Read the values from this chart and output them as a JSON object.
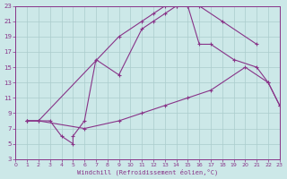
{
  "xlabel": "Windchill (Refroidissement éolien,°C)",
  "bg_color": "#cce8e8",
  "grid_color": "#aacccc",
  "line_color": "#883388",
  "xlim": [
    0,
    23
  ],
  "ylim": [
    3,
    23
  ],
  "xticks": [
    0,
    1,
    2,
    3,
    4,
    5,
    6,
    7,
    8,
    9,
    10,
    11,
    12,
    13,
    14,
    15,
    16,
    17,
    18,
    19,
    20,
    21,
    22,
    23
  ],
  "yticks": [
    3,
    5,
    7,
    9,
    11,
    13,
    15,
    17,
    19,
    21,
    23
  ],
  "line1_x": [
    1,
    2,
    9,
    11,
    12,
    13,
    14,
    15,
    16,
    18,
    21
  ],
  "line1_y": [
    8,
    8,
    19,
    21,
    22,
    23,
    23,
    23,
    23,
    21,
    18
  ],
  "line2_x": [
    1,
    3,
    4,
    5,
    5,
    6,
    7,
    9,
    11,
    12,
    13,
    14,
    15,
    16,
    17,
    19,
    21,
    22,
    23
  ],
  "line2_y": [
    8,
    8,
    6,
    5,
    6,
    8,
    16,
    14,
    20,
    21,
    22,
    23,
    23,
    18,
    18,
    16,
    15,
    13,
    10
  ],
  "line3_x": [
    1,
    2,
    6,
    9,
    11,
    13,
    15,
    17,
    20,
    22,
    23
  ],
  "line3_y": [
    8,
    8,
    7,
    8,
    9,
    10,
    11,
    12,
    15,
    13,
    10
  ]
}
